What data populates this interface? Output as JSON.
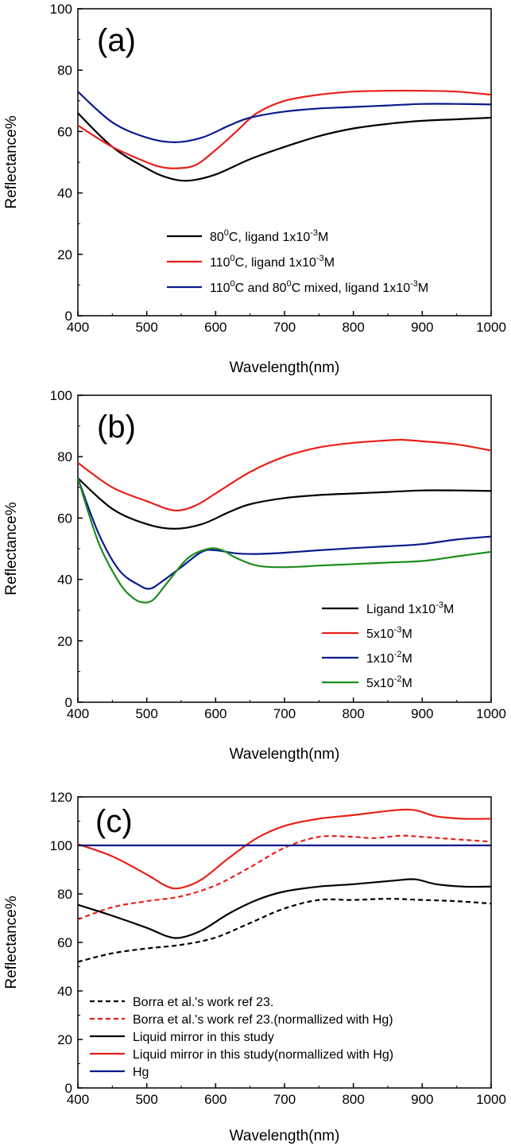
{
  "chart_data": [
    {
      "type": "line",
      "panel_label": "(a)",
      "xlabel": "Wavelength(nm)",
      "ylabel": "Reflectance%",
      "xlim": [
        400,
        1000
      ],
      "ylim": [
        0,
        100
      ],
      "xticks": [
        400,
        500,
        600,
        700,
        800,
        900,
        1000
      ],
      "yticks": [
        0,
        20,
        40,
        60,
        80,
        100
      ],
      "grid": false,
      "legend_position": "lower-center",
      "series": [
        {
          "name": "80⁰C, ligand 1x10⁻³M",
          "legend": [
            "80",
            "0",
            "C, ligand 1x10",
            "-3",
            "M"
          ],
          "color": "#000000",
          "dash": "solid",
          "x": [
            400,
            450,
            500,
            530,
            560,
            600,
            650,
            700,
            750,
            800,
            850,
            900,
            950,
            1000
          ],
          "y": [
            66,
            55,
            48,
            45,
            44,
            46,
            51,
            55,
            58.5,
            61,
            62.5,
            63.5,
            64,
            64.5
          ]
        },
        {
          "name": "110⁰C, ligand 1x10⁻³M",
          "legend": [
            "110",
            "0",
            "C, ligand 1x10",
            "-3",
            "M"
          ],
          "color": "#e8201a",
          "dash": "solid",
          "x": [
            400,
            450,
            500,
            520,
            540,
            570,
            600,
            630,
            660,
            700,
            750,
            800,
            850,
            900,
            950,
            1000
          ],
          "y": [
            62,
            55,
            50,
            48.5,
            48,
            49,
            54,
            60,
            66,
            70,
            72,
            73,
            73.3,
            73.3,
            73,
            72
          ]
        },
        {
          "name": "110⁰C and 80⁰C mixed, ligand 1x10⁻³M",
          "legend": [
            "110",
            "0",
            "C and 80",
            "0",
            "C mixed, ligand 1x10",
            "-3",
            "M"
          ],
          "color": "#0a1a8c",
          "dash": "solid",
          "x": [
            400,
            450,
            500,
            540,
            580,
            620,
            650,
            700,
            750,
            800,
            850,
            900,
            950,
            1000
          ],
          "y": [
            73,
            63,
            58,
            56.5,
            58,
            62,
            64.5,
            66.5,
            67.5,
            68,
            68.5,
            69,
            69,
            68.8
          ]
        }
      ]
    },
    {
      "type": "line",
      "panel_label": "(b)",
      "xlabel": "Wavelength(nm)",
      "ylabel": "Reflectance%",
      "xlim": [
        400,
        1000
      ],
      "ylim": [
        0,
        100
      ],
      "xticks": [
        400,
        500,
        600,
        700,
        800,
        900,
        1000
      ],
      "yticks": [
        0,
        20,
        40,
        60,
        80,
        100
      ],
      "grid": false,
      "legend_position": "lower-right",
      "series": [
        {
          "name": "Ligand 1x10⁻³M",
          "legend": [
            "Ligand 1x10",
            "-3",
            "M"
          ],
          "color": "#000000",
          "dash": "solid",
          "x": [
            400,
            450,
            500,
            540,
            580,
            620,
            650,
            700,
            750,
            800,
            850,
            900,
            950,
            1000
          ],
          "y": [
            73,
            63,
            58,
            56.5,
            58,
            62,
            64.5,
            66.5,
            67.5,
            68,
            68.5,
            69,
            69,
            68.8
          ]
        },
        {
          "name": "5x10⁻³M",
          "legend": [
            "5x10",
            "-3",
            "M"
          ],
          "color": "#e8201a",
          "dash": "solid",
          "x": [
            400,
            450,
            500,
            540,
            570,
            600,
            650,
            700,
            750,
            800,
            850,
            870,
            900,
            950,
            1000
          ],
          "y": [
            78,
            70,
            65.5,
            62.5,
            64,
            68,
            75,
            80,
            83,
            84.5,
            85.3,
            85.5,
            85,
            84,
            82
          ]
        },
        {
          "name": "1x10⁻²M",
          "legend": [
            "1x10",
            "-2",
            "M"
          ],
          "color": "#0a1a8c",
          "dash": "solid",
          "x": [
            400,
            430,
            460,
            490,
            505,
            520,
            550,
            580,
            600,
            630,
            660,
            700,
            750,
            800,
            850,
            900,
            950,
            1000
          ],
          "y": [
            73,
            55,
            43,
            38,
            37,
            39,
            44,
            49,
            49.5,
            48.5,
            48.3,
            48.7,
            49.5,
            50.2,
            50.8,
            51.5,
            53,
            54
          ]
        },
        {
          "name": "5x10⁻²M",
          "legend": [
            "5x10",
            "-2",
            "M"
          ],
          "color": "#1e8c1e",
          "dash": "solid",
          "x": [
            400,
            430,
            460,
            480,
            495,
            510,
            530,
            560,
            590,
            610,
            630,
            660,
            700,
            750,
            800,
            850,
            900,
            950,
            1000
          ],
          "y": [
            73,
            52,
            39,
            34,
            32.5,
            33.5,
            39,
            47,
            50,
            49.5,
            47,
            44.5,
            44,
            44.5,
            45,
            45.5,
            46,
            47.5,
            49
          ]
        }
      ]
    },
    {
      "type": "line",
      "panel_label": "(c)",
      "xlabel": "Wavelength(nm)",
      "ylabel": "Reflectance%",
      "xlim": [
        400,
        1000
      ],
      "ylim": [
        0,
        120
      ],
      "xticks": [
        400,
        500,
        600,
        700,
        800,
        900,
        1000
      ],
      "yticks": [
        0,
        20,
        40,
        60,
        80,
        100,
        120
      ],
      "grid": false,
      "legend_position": "lower-left",
      "series": [
        {
          "name": "Borra et al.'s work ref 23.",
          "legend": [
            "Borra et al.'s work ref 23."
          ],
          "color": "#000000",
          "dash": "dashed",
          "x": [
            400,
            450,
            500,
            550,
            600,
            650,
            700,
            750,
            800,
            850,
            900,
            950,
            1000
          ],
          "y": [
            52,
            55.5,
            57.5,
            59,
            62,
            68,
            74,
            77.5,
            77.5,
            78,
            77.5,
            77,
            76
          ]
        },
        {
          "name": "Borra et al.'s work ref 23.(normallized with Hg)",
          "legend": [
            "Borra et al.'s work ref 23.(normallized with Hg)"
          ],
          "color": "#e8201a",
          "dash": "dashed",
          "x": [
            400,
            450,
            500,
            550,
            600,
            650,
            700,
            750,
            800,
            830,
            870,
            900,
            950,
            1000
          ],
          "y": [
            69.5,
            74.5,
            77,
            79,
            83.5,
            91,
            99,
            103.5,
            103.5,
            103,
            104,
            103.5,
            102.5,
            101.5
          ]
        },
        {
          "name": "Liquid mirror in this study",
          "legend": [
            "Liquid mirror in this study"
          ],
          "color": "#000000",
          "dash": "solid",
          "x": [
            400,
            450,
            500,
            530,
            550,
            580,
            620,
            660,
            700,
            750,
            800,
            860,
            890,
            920,
            960,
            1000
          ],
          "y": [
            75.5,
            71,
            66,
            62.5,
            62,
            65,
            72,
            77.5,
            81,
            83,
            84,
            85.5,
            86,
            84,
            83,
            83
          ]
        },
        {
          "name": "Liquid mirror in this study(normallized with Hg)",
          "legend": [
            "Liquid mirror in this study(normallized with Hg)"
          ],
          "color": "#e8201a",
          "dash": "solid",
          "x": [
            400,
            450,
            500,
            530,
            550,
            580,
            620,
            660,
            700,
            750,
            800,
            860,
            890,
            920,
            960,
            1000
          ],
          "y": [
            100.5,
            95.5,
            88,
            83,
            82.5,
            86,
            95,
            103,
            108,
            111,
            112.5,
            114.5,
            114.5,
            112,
            111,
            111
          ]
        },
        {
          "name": "Hg",
          "legend": [
            "Hg"
          ],
          "color": "#0a1a8c",
          "dash": "solid",
          "x": [
            400,
            1000
          ],
          "y": [
            100,
            100
          ]
        }
      ]
    }
  ]
}
